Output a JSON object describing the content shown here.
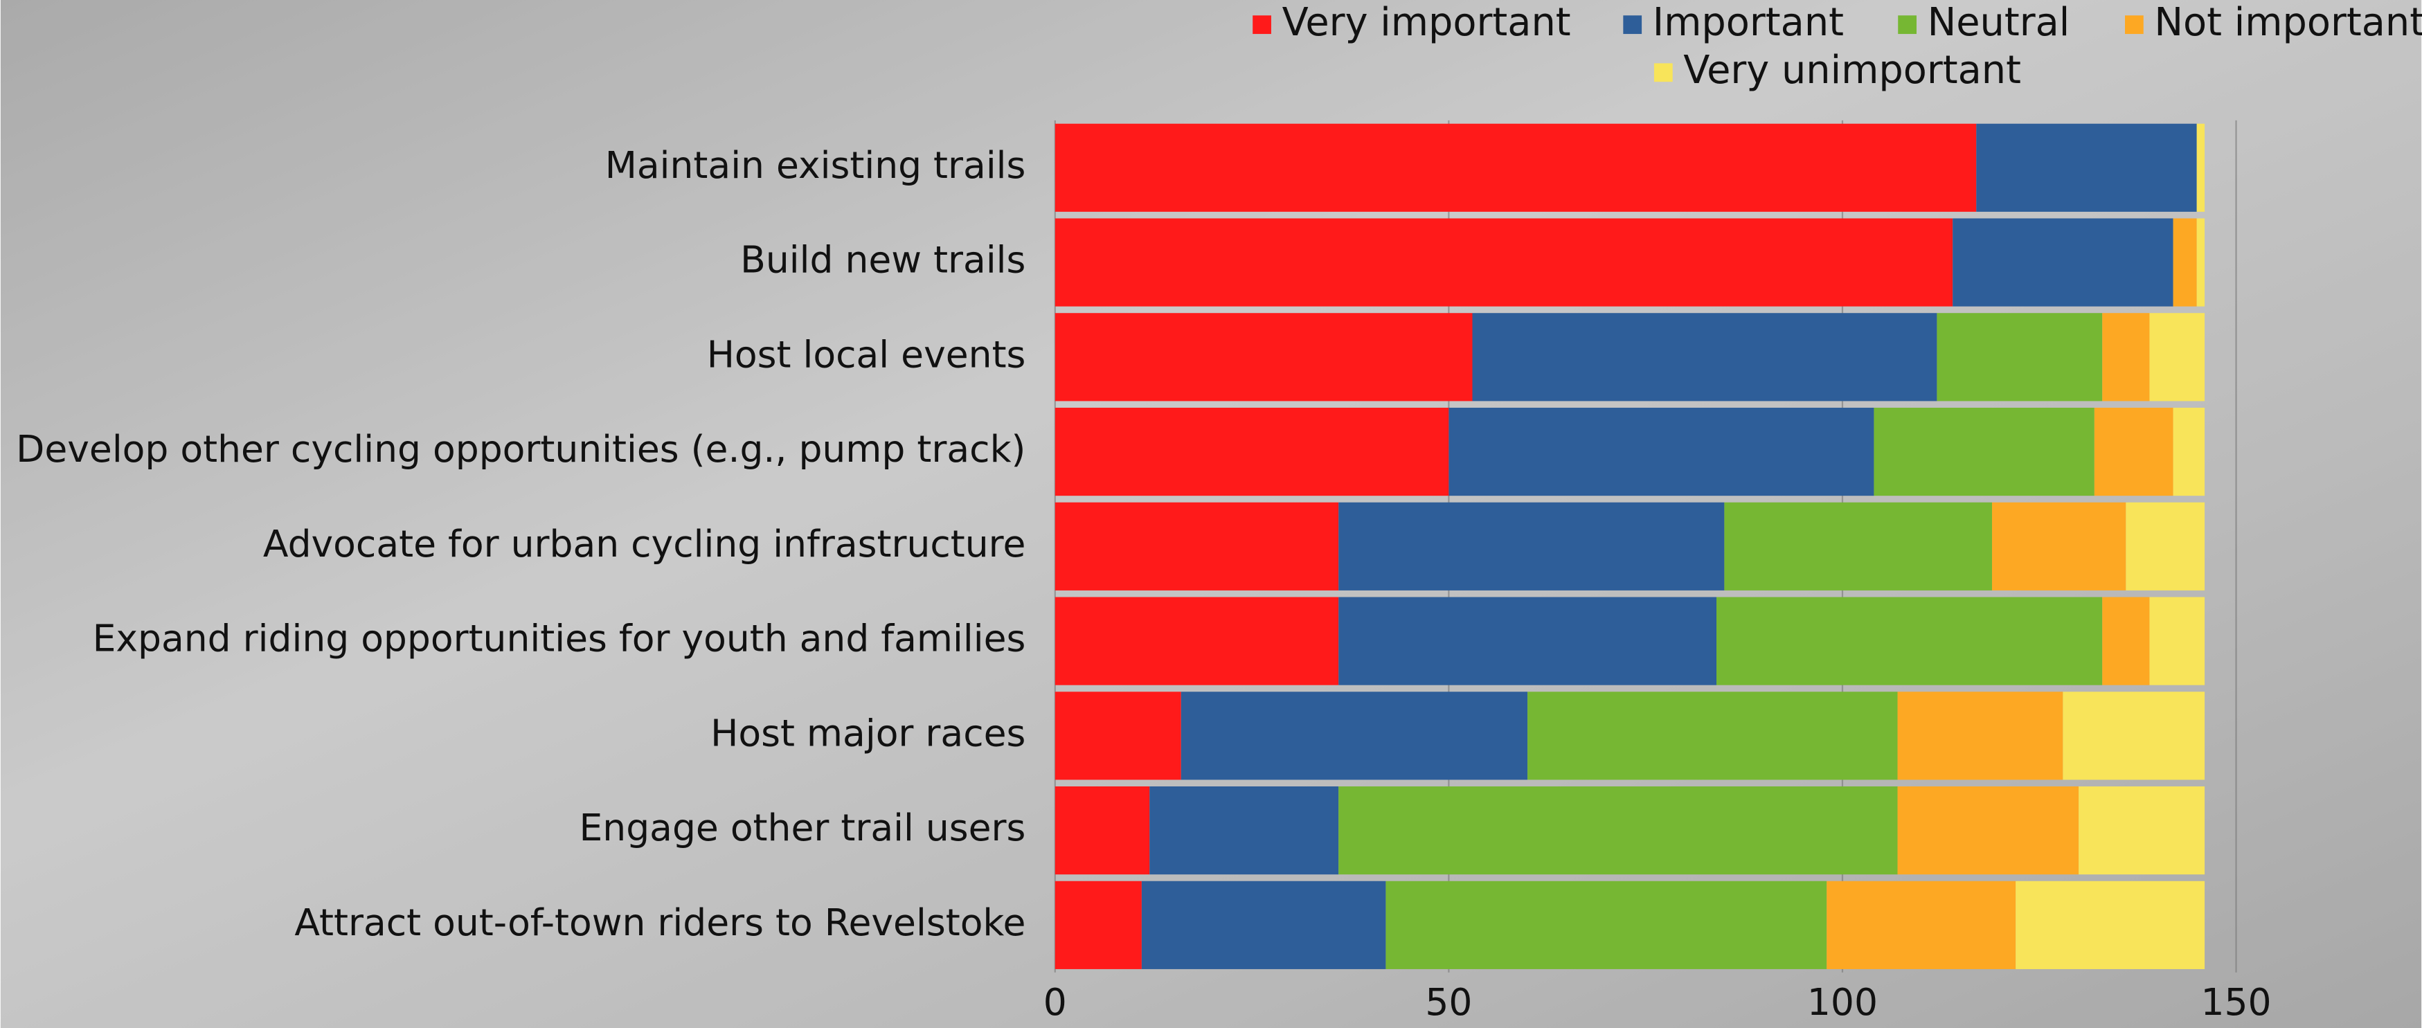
{
  "chart_data": {
    "type": "stacked_bar_horizontal",
    "categories": [
      "Maintain existing trails",
      "Build new trails",
      "Host local events",
      "Develop other cycling opportunities (e.g., pump track)",
      "Advocate for urban cycling infrastructure",
      "Expand riding opportunities for youth and families",
      "Host major races",
      "Engage other trail users",
      "Attract out-of-town riders to Revelstoke"
    ],
    "series": [
      {
        "name": "Very important",
        "color": "#ff1a1a",
        "values": [
          117,
          114,
          53,
          50,
          36,
          36,
          16,
          12,
          11
        ]
      },
      {
        "name": "Important",
        "color": "#2e5e99",
        "values": [
          28,
          28,
          59,
          54,
          49,
          48,
          44,
          24,
          31
        ]
      },
      {
        "name": "Neutral",
        "color": "#76b733",
        "values": [
          0,
          0,
          21,
          28,
          34,
          49,
          47,
          71,
          56
        ]
      },
      {
        "name": "Not important",
        "color": "#fda823",
        "values": [
          0,
          3,
          6,
          10,
          17,
          6,
          21,
          23,
          24
        ]
      },
      {
        "name": "Very unimportant",
        "color": "#f8e45a",
        "values": [
          1,
          1,
          7,
          4,
          10,
          7,
          18,
          16,
          24
        ]
      }
    ],
    "xlim": [
      0,
      150
    ],
    "xticks": [
      0,
      50,
      100,
      150
    ],
    "grid": true,
    "legend": "top-right"
  }
}
